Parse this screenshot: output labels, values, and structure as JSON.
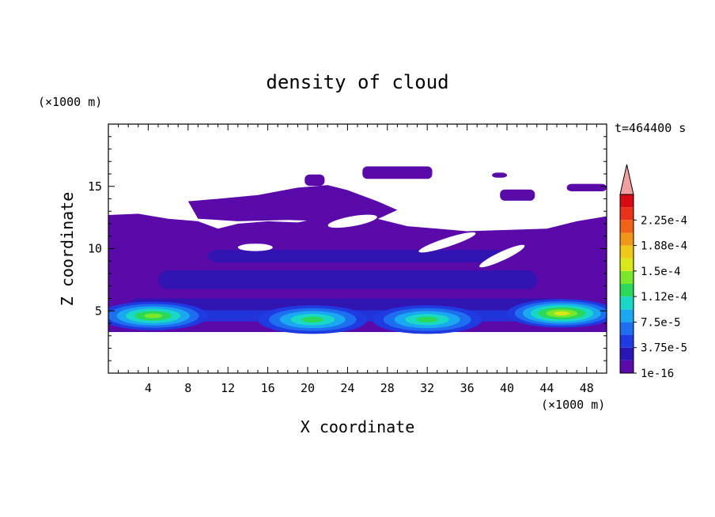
{
  "chart_data": {
    "type": "heatmap",
    "title": "density of cloud",
    "xlabel": "X coordinate",
    "ylabel": "Z coordinate",
    "x_unit": "(×1000 m)",
    "y_unit": "(×1000 m)",
    "time_label": "t=464400 s",
    "xlim": [
      0,
      50
    ],
    "ylim": [
      0,
      20
    ],
    "x_ticks": [
      4,
      8,
      12,
      16,
      20,
      24,
      28,
      32,
      36,
      40,
      44,
      48
    ],
    "y_ticks": [
      5,
      10,
      15
    ],
    "colorbar": {
      "labels": [
        "1e-16",
        "3.75e-5",
        "7.5e-5",
        "1.12e-4",
        "1.5e-4",
        "1.88e-4",
        "2.25e-4"
      ],
      "colors": [
        "#5a0aa8",
        "#2a16b4",
        "#1e3ae0",
        "#1e6ef0",
        "#1aa8f0",
        "#1ad8c8",
        "#2ad85a",
        "#7ae82a",
        "#d8e81a",
        "#f0c81a",
        "#f0961a",
        "#f0641a",
        "#e8321a",
        "#d80a14"
      ],
      "extend_color": "#f0a0a0"
    },
    "field": {
      "base_color": "#5a0aa8",
      "band_bottom": 3.3,
      "cores": [
        {
          "x": 4.5,
          "z": 4.6,
          "level": 5
        },
        {
          "x": 20.5,
          "z": 4.3,
          "level": 4
        },
        {
          "x": 32.0,
          "z": 4.3,
          "level": 4
        },
        {
          "x": 45.5,
          "z": 4.8,
          "level": 6
        }
      ]
    }
  }
}
